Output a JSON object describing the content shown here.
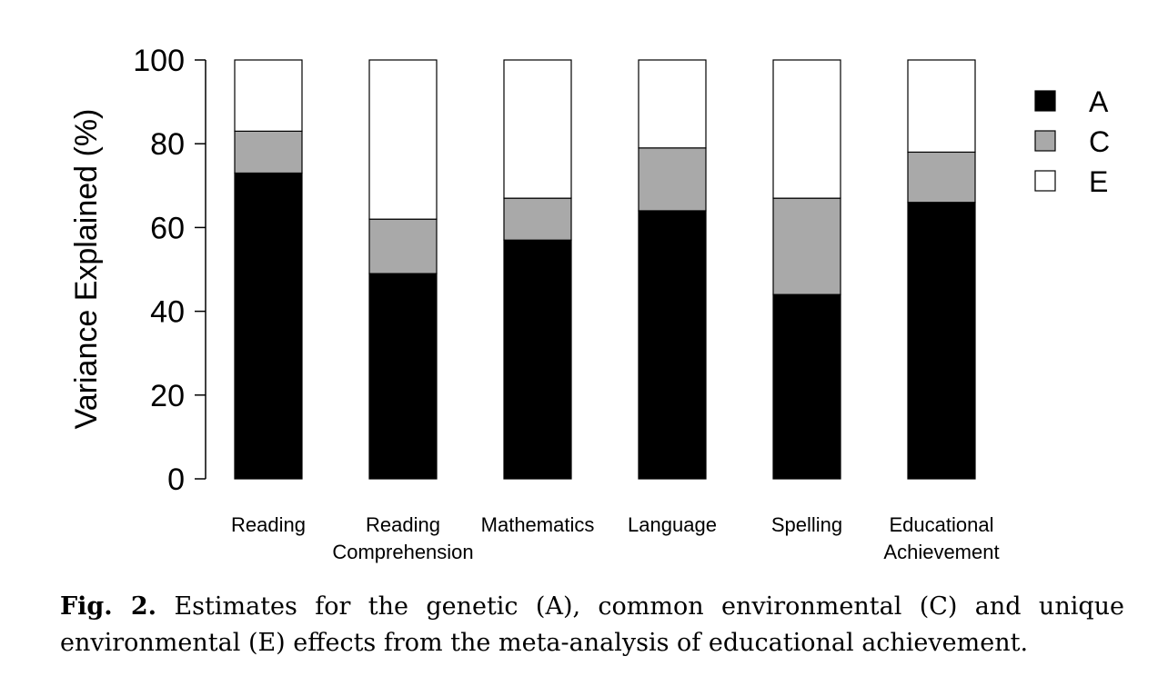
{
  "chart_data": {
    "type": "bar",
    "stacked": true,
    "categories": [
      "Reading",
      "Reading\nComprehension",
      "Mathematics",
      "Language",
      "Spelling",
      "Educational\nAchievement"
    ],
    "series": [
      {
        "name": "A",
        "color": "#000000",
        "values": [
          73,
          49,
          57,
          64,
          44,
          66
        ]
      },
      {
        "name": "C",
        "color": "#a9a9a9",
        "values": [
          10,
          13,
          10,
          15,
          23,
          12
        ]
      },
      {
        "name": "E",
        "color": "#ffffff",
        "values": [
          17,
          38,
          33,
          21,
          33,
          22
        ]
      }
    ],
    "ylabel": "Variance Explained (%)",
    "ylim": [
      0,
      100
    ],
    "yticks": [
      0,
      20,
      40,
      60,
      80,
      100
    ],
    "grid": false,
    "legend": "right"
  },
  "caption": {
    "label": "Fig. 2.",
    "text": "Estimates for the genetic (A), common environmental (C) and unique environmental (E) effects from the meta-analysis of educational achievement."
  }
}
